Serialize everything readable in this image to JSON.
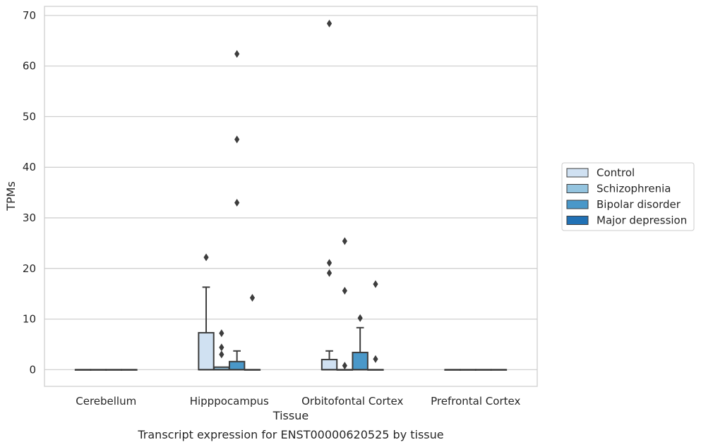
{
  "chart_data": {
    "type": "box",
    "title": "",
    "caption": "Transcript expression for ENST00000620525 by tissue",
    "xlabel": "Tissue",
    "ylabel": "TPMs",
    "ylim": [
      -3.3,
      71.8
    ],
    "yticks": [
      0,
      10,
      20,
      30,
      40,
      50,
      60,
      70
    ],
    "grid": "horizontal",
    "legend_position": "right",
    "categories": [
      "Cerebellum",
      "Hipppocampus",
      "Orbitofontal Cortex",
      "Prefrontal Cortex"
    ],
    "series": [
      {
        "name": "Control",
        "color": "#d0e1f2",
        "boxes": [
          {
            "category": "Cerebellum",
            "q1": 0,
            "median": 0,
            "q3": 0,
            "whisker_low": 0,
            "whisker_high": 0,
            "outliers": []
          },
          {
            "category": "Hipppocampus",
            "q1": 0,
            "median": 0,
            "q3": 7.3,
            "whisker_low": 0,
            "whisker_high": 16.3,
            "outliers": [
              22.2
            ]
          },
          {
            "category": "Orbitofontal Cortex",
            "q1": 0,
            "median": 0,
            "q3": 2.0,
            "whisker_low": 0,
            "whisker_high": 3.7,
            "outliers": [
              19.1,
              21.1,
              68.4
            ]
          },
          {
            "category": "Prefrontal Cortex",
            "q1": 0,
            "median": 0,
            "q3": 0,
            "whisker_low": 0,
            "whisker_high": 0,
            "outliers": []
          }
        ]
      },
      {
        "name": "Schizophrenia",
        "color": "#94c4df",
        "boxes": [
          {
            "category": "Cerebellum",
            "q1": 0,
            "median": 0,
            "q3": 0,
            "whisker_low": 0,
            "whisker_high": 0,
            "outliers": []
          },
          {
            "category": "Hipppocampus",
            "q1": 0,
            "median": 0,
            "q3": 0.5,
            "whisker_low": 0,
            "whisker_high": 0.5,
            "outliers": [
              3.0,
              4.4,
              7.2
            ]
          },
          {
            "category": "Orbitofontal Cortex",
            "q1": 0,
            "median": 0,
            "q3": 0,
            "whisker_low": 0,
            "whisker_high": 0,
            "outliers": [
              0.8,
              15.6,
              25.4
            ]
          },
          {
            "category": "Prefrontal Cortex",
            "q1": 0,
            "median": 0,
            "q3": 0,
            "whisker_low": 0,
            "whisker_high": 0,
            "outliers": []
          }
        ]
      },
      {
        "name": "Bipolar disorder",
        "color": "#4a98c9",
        "boxes": [
          {
            "category": "Cerebellum",
            "q1": 0,
            "median": 0,
            "q3": 0,
            "whisker_low": 0,
            "whisker_high": 0,
            "outliers": []
          },
          {
            "category": "Hipppocampus",
            "q1": 0,
            "median": 0,
            "q3": 1.6,
            "whisker_low": 0,
            "whisker_high": 3.7,
            "outliers": [
              33.0,
              45.5,
              62.4
            ]
          },
          {
            "category": "Orbitofontal Cortex",
            "q1": 0,
            "median": 0,
            "q3": 3.4,
            "whisker_low": 0,
            "whisker_high": 8.3,
            "outliers": [
              10.2
            ]
          },
          {
            "category": "Prefrontal Cortex",
            "q1": 0,
            "median": 0,
            "q3": 0,
            "whisker_low": 0,
            "whisker_high": 0,
            "outliers": []
          }
        ]
      },
      {
        "name": "Major depression",
        "color": "#2171b5",
        "boxes": [
          {
            "category": "Cerebellum",
            "q1": 0,
            "median": 0,
            "q3": 0,
            "whisker_low": 0,
            "whisker_high": 0,
            "outliers": []
          },
          {
            "category": "Hipppocampus",
            "q1": 0,
            "median": 0,
            "q3": 0,
            "whisker_low": 0,
            "whisker_high": 0,
            "outliers": [
              14.2
            ]
          },
          {
            "category": "Orbitofontal Cortex",
            "q1": 0,
            "median": 0,
            "q3": 0,
            "whisker_low": 0,
            "whisker_high": 0,
            "outliers": [
              2.1,
              16.9
            ]
          },
          {
            "category": "Prefrontal Cortex",
            "q1": 0,
            "median": 0,
            "q3": 0,
            "whisker_low": 0,
            "whisker_high": 0,
            "outliers": []
          }
        ]
      }
    ]
  }
}
